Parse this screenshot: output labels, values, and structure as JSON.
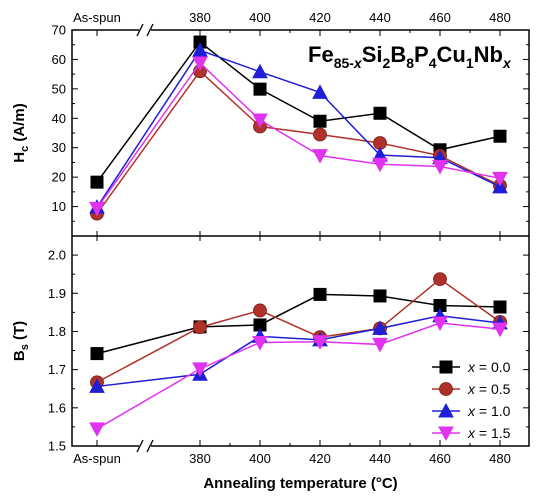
{
  "chart_data": {
    "type": "line",
    "x_categories": [
      "As-spun",
      "380",
      "400",
      "420",
      "440",
      "460",
      "480"
    ],
    "x_axis_break": true,
    "xlabel": "Annealing temperature (°C)",
    "formula": {
      "parts": [
        {
          "text": "Fe",
          "sub": false
        },
        {
          "text": "85-",
          "sub": true
        },
        {
          "text": "x",
          "sub": true,
          "italic": true
        },
        {
          "text": "Si",
          "sub": false
        },
        {
          "text": "2",
          "sub": true
        },
        {
          "text": "B",
          "sub": false
        },
        {
          "text": "8",
          "sub": true
        },
        {
          "text": "P",
          "sub": false
        },
        {
          "text": "4",
          "sub": true
        },
        {
          "text": "Cu",
          "sub": false
        },
        {
          "text": "1",
          "sub": true
        },
        {
          "text": "Nb",
          "sub": false
        },
        {
          "text": "x",
          "sub": true,
          "italic": true
        }
      ]
    },
    "legend": {
      "position": "bottom-right",
      "var_label": "x",
      "eq": "= ",
      "entries": [
        "0.0",
        "0.5",
        "1.0",
        "1.5"
      ]
    },
    "series": [
      {
        "x_value": "0.0",
        "color": "#000000",
        "marker": "square",
        "hc": [
          18.3,
          65.9,
          49.9,
          39.0,
          41.7,
          29.3,
          33.9
        ],
        "bs": [
          1.742,
          1.812,
          1.817,
          1.897,
          1.893,
          1.868,
          1.864
        ]
      },
      {
        "x_value": "0.5",
        "color": "#b0312a",
        "marker": "circle",
        "hc": [
          7.6,
          56.0,
          37.2,
          34.5,
          31.6,
          27.3,
          17.1
        ],
        "bs": [
          1.667,
          1.811,
          1.855,
          1.785,
          1.808,
          1.937,
          1.825
        ]
      },
      {
        "x_value": "1.0",
        "color": "#1f1fd6",
        "marker": "triangle-up",
        "hc": [
          9.8,
          63.1,
          55.8,
          48.8,
          27.5,
          26.6,
          16.7
        ],
        "bs": [
          1.656,
          1.688,
          1.787,
          1.778,
          1.808,
          1.841,
          1.822
        ]
      },
      {
        "x_value": "1.5",
        "color": "#e033f0",
        "marker": "triangle-down",
        "hc": [
          9.4,
          58.8,
          39.4,
          27.3,
          24.4,
          23.6,
          19.6
        ],
        "bs": [
          1.545,
          1.702,
          1.771,
          1.773,
          1.766,
          1.822,
          1.806
        ]
      }
    ],
    "panels": [
      {
        "name": "Hc",
        "ylabel": {
          "main": "H",
          "sub": "c",
          "rest": " (A/m)"
        },
        "ylim": [
          0,
          70
        ],
        "yticks": [
          10,
          20,
          30,
          40,
          50,
          60,
          70
        ],
        "tick_decimals": 0,
        "key": "hc"
      },
      {
        "name": "Bs",
        "ylabel": {
          "main": "B",
          "sub": "s",
          "rest": " (T)"
        },
        "ylim": [
          1.5,
          2.05
        ],
        "yticks": [
          1.5,
          1.6,
          1.7,
          1.8,
          1.9,
          2.0
        ],
        "tick_decimals": 1,
        "key": "bs"
      }
    ]
  }
}
